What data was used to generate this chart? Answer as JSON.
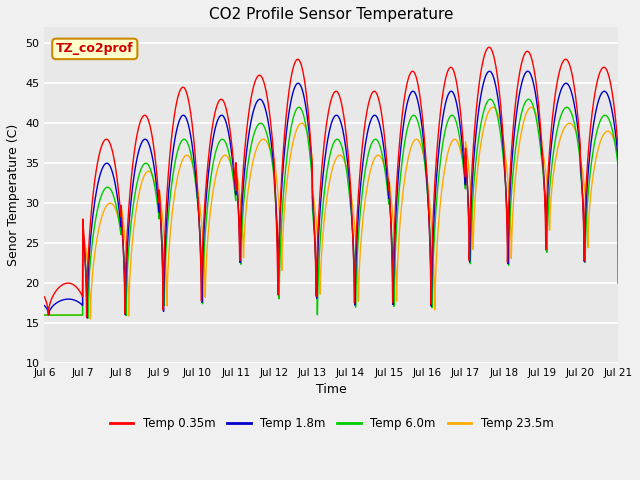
{
  "title": "CO2 Profile Sensor Temperature",
  "xlabel": "Time",
  "ylabel": "Senor Temperature (C)",
  "ylim": [
    10,
    52
  ],
  "yticks": [
    10,
    15,
    20,
    25,
    30,
    35,
    40,
    45,
    50
  ],
  "xlim_start": 6.0,
  "xlim_end": 21.0,
  "xtick_positions": [
    6,
    7,
    8,
    9,
    10,
    11,
    12,
    13,
    14,
    15,
    16,
    17,
    18,
    19,
    20,
    21
  ],
  "xtick_labels": [
    "Jul 6",
    "Jul 7",
    "Jul 8",
    "Jul 9",
    "Jul 10",
    "Jul 11",
    "Jul 12",
    "Jul 13",
    "Jul 14",
    "Jul 15",
    "Jul 16",
    "Jul 17",
    "Jul 18",
    "Jul 19",
    "Jul 20",
    "Jul 21"
  ],
  "color_red": "#ff0000",
  "color_blue": "#0000cc",
  "color_green": "#00cc00",
  "color_orange": "#ffaa00",
  "annotation_text": "TZ_co2prof",
  "annotation_facecolor": "#ffffcc",
  "annotation_edgecolor": "#cc8800",
  "annotation_textcolor": "#cc0000",
  "legend_labels": [
    "Temp 0.35m",
    "Temp 1.8m",
    "Temp 6.0m",
    "Temp 23.5m"
  ],
  "axes_bg_color": "#e8e8e8",
  "fig_bg_color": "#f0f0f0",
  "n_points": 3000,
  "day_start": 6,
  "day_end": 21,
  "day_peaks_red": [
    20,
    38,
    41,
    44.5,
    43,
    46,
    48,
    44,
    44,
    46.5,
    47,
    49.5,
    49,
    48,
    47
  ],
  "day_mins_red": [
    16,
    15,
    15,
    15,
    16,
    21,
    16,
    16,
    15,
    15,
    15,
    21,
    21,
    23,
    22
  ],
  "day_peaks_blue": [
    18,
    35,
    38,
    41,
    41,
    43,
    45,
    41,
    41,
    44,
    44,
    46.5,
    46.5,
    45,
    44
  ],
  "day_mins_blue": [
    16,
    15,
    15,
    15,
    16,
    21,
    18,
    16,
    15,
    15,
    15,
    21,
    21,
    24,
    22
  ],
  "day_peaks_green": [
    16,
    32,
    35,
    38,
    38,
    40,
    42,
    38,
    38,
    41,
    41,
    43,
    43,
    42,
    41
  ],
  "day_mins_green": [
    16,
    15,
    15,
    16,
    16,
    21,
    16,
    14,
    15,
    15,
    15,
    21,
    21,
    23,
    22
  ],
  "day_peaks_orange": [
    16,
    30,
    34,
    36,
    36,
    38,
    40,
    36,
    36,
    38,
    38,
    42,
    42,
    40,
    39
  ],
  "day_mins_orange": [
    16,
    15,
    15,
    16,
    17,
    22,
    20,
    17,
    16,
    16,
    15,
    23,
    22,
    26,
    24
  ]
}
